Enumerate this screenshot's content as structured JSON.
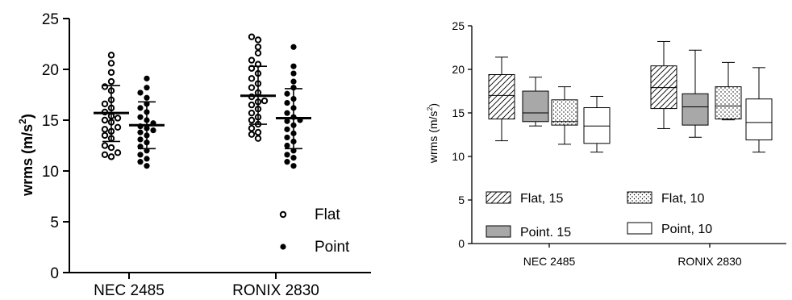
{
  "chart_data": [
    {
      "type": "scatter",
      "title": "",
      "xlabel": "",
      "ylabel": "wrms (m/s²)",
      "ylabel_base": "wrms (m/s",
      "ylabel_sup": "2",
      "ylabel_tail": ")",
      "ylim": [
        0,
        25
      ],
      "yticks": [
        0,
        5,
        10,
        15,
        20,
        25
      ],
      "yticks_text": [
        "0",
        "5",
        "10",
        "15",
        "20",
        "25"
      ],
      "grid": false,
      "legend_placement": "bottom-right",
      "categories": [
        "NEC 2485",
        "RONIX 2830"
      ],
      "series": [
        {
          "name": "Flat",
          "marker": "open-circle",
          "groups": [
            {
              "category": "NEC 2485",
              "mean": 15.7,
              "sd_low": 12.9,
              "sd_high": 18.4,
              "values": [
                21.4,
                20.6,
                19.7,
                18.8,
                18.3,
                17.9,
                17.0,
                16.6,
                16.2,
                15.8,
                15.4,
                15.2,
                14.8,
                14.3,
                14.1,
                13.9,
                13.5,
                13.2,
                12.5,
                12.3,
                11.8,
                11.6,
                11.4,
                15.0
              ]
            },
            {
              "category": "RONIX 2830",
              "mean": 17.4,
              "sd_low": 14.6,
              "sd_high": 20.3,
              "values": [
                23.2,
                22.9,
                22.2,
                21.6,
                20.9,
                20.5,
                20.1,
                19.6,
                19.1,
                18.6,
                18.2,
                17.7,
                17.3,
                16.8,
                16.5,
                16.1,
                15.7,
                15.3,
                15.0,
                14.6,
                14.2,
                13.8,
                13.6,
                13.2,
                16.9
              ]
            }
          ]
        },
        {
          "name": "Point",
          "marker": "filled-circle",
          "groups": [
            {
              "category": "NEC 2485",
              "mean": 14.5,
              "sd_low": 12.2,
              "sd_high": 16.8,
              "values": [
                19.1,
                18.2,
                17.7,
                17.2,
                16.6,
                16.2,
                15.8,
                15.3,
                15.0,
                14.7,
                14.4,
                14.2,
                14.0,
                13.8,
                13.5,
                13.1,
                12.8,
                12.4,
                12.0,
                11.6,
                11.2,
                10.9,
                10.5
              ]
            },
            {
              "category": "RONIX 2830",
              "mean": 15.2,
              "sd_low": 12.2,
              "sd_high": 18.1,
              "values": [
                22.2,
                20.3,
                19.6,
                18.8,
                18.2,
                17.6,
                17.1,
                16.7,
                16.2,
                15.7,
                15.3,
                14.9,
                14.5,
                14.1,
                13.7,
                13.3,
                12.9,
                12.5,
                12.0,
                11.6,
                11.3,
                10.9,
                10.5,
                15.0
              ]
            }
          ]
        }
      ]
    },
    {
      "type": "box",
      "title": "",
      "xlabel": "",
      "ylabel": "wrms (m/s²)",
      "ylabel_base": "wrms (m/s",
      "ylabel_sup": "2",
      "ylabel_tail": ")",
      "ylim": [
        0,
        25
      ],
      "yticks": [
        0,
        5,
        10,
        15,
        20,
        25
      ],
      "yticks_text": [
        "0",
        "5",
        "10",
        "15",
        "20",
        "25"
      ],
      "grid": false,
      "legend_placement": "bottom",
      "categories": [
        "NEC 2485",
        "RONIX 2830"
      ],
      "series": [
        {
          "name": "Flat, 15",
          "fill": "hatch",
          "boxes": [
            {
              "category": "NEC 2485",
              "min": 11.8,
              "q1": 14.3,
              "median": 17.0,
              "q3": 19.4,
              "max": 21.4
            },
            {
              "category": "RONIX 2830",
              "min": 13.2,
              "q1": 15.5,
              "median": 17.9,
              "q3": 20.4,
              "max": 23.2
            }
          ]
        },
        {
          "name": "Point. 15",
          "fill": "#a8a8a8",
          "boxes": [
            {
              "category": "NEC 2485",
              "min": 13.5,
              "q1": 14.0,
              "median": 15.0,
              "q3": 17.5,
              "max": 19.1
            },
            {
              "category": "RONIX 2830",
              "min": 12.2,
              "q1": 13.6,
              "median": 15.7,
              "q3": 17.2,
              "max": 22.2
            }
          ]
        },
        {
          "name": "Flat, 10",
          "fill": "dots",
          "boxes": [
            {
              "category": "NEC 2485",
              "min": 11.4,
              "q1": 13.6,
              "median": 14.0,
              "q3": 16.5,
              "max": 18.0
            },
            {
              "category": "RONIX 2830",
              "min": 14.2,
              "q1": 14.3,
              "median": 15.8,
              "q3": 18.0,
              "max": 20.8
            }
          ]
        },
        {
          "name": "Point, 10",
          "fill": "#ffffff",
          "boxes": [
            {
              "category": "NEC 2485",
              "min": 10.5,
              "q1": 11.5,
              "median": 13.5,
              "q3": 15.6,
              "max": 16.9
            },
            {
              "category": "RONIX 2830",
              "min": 10.5,
              "q1": 11.9,
              "median": 13.9,
              "q3": 16.6,
              "max": 20.2
            }
          ]
        }
      ]
    }
  ]
}
